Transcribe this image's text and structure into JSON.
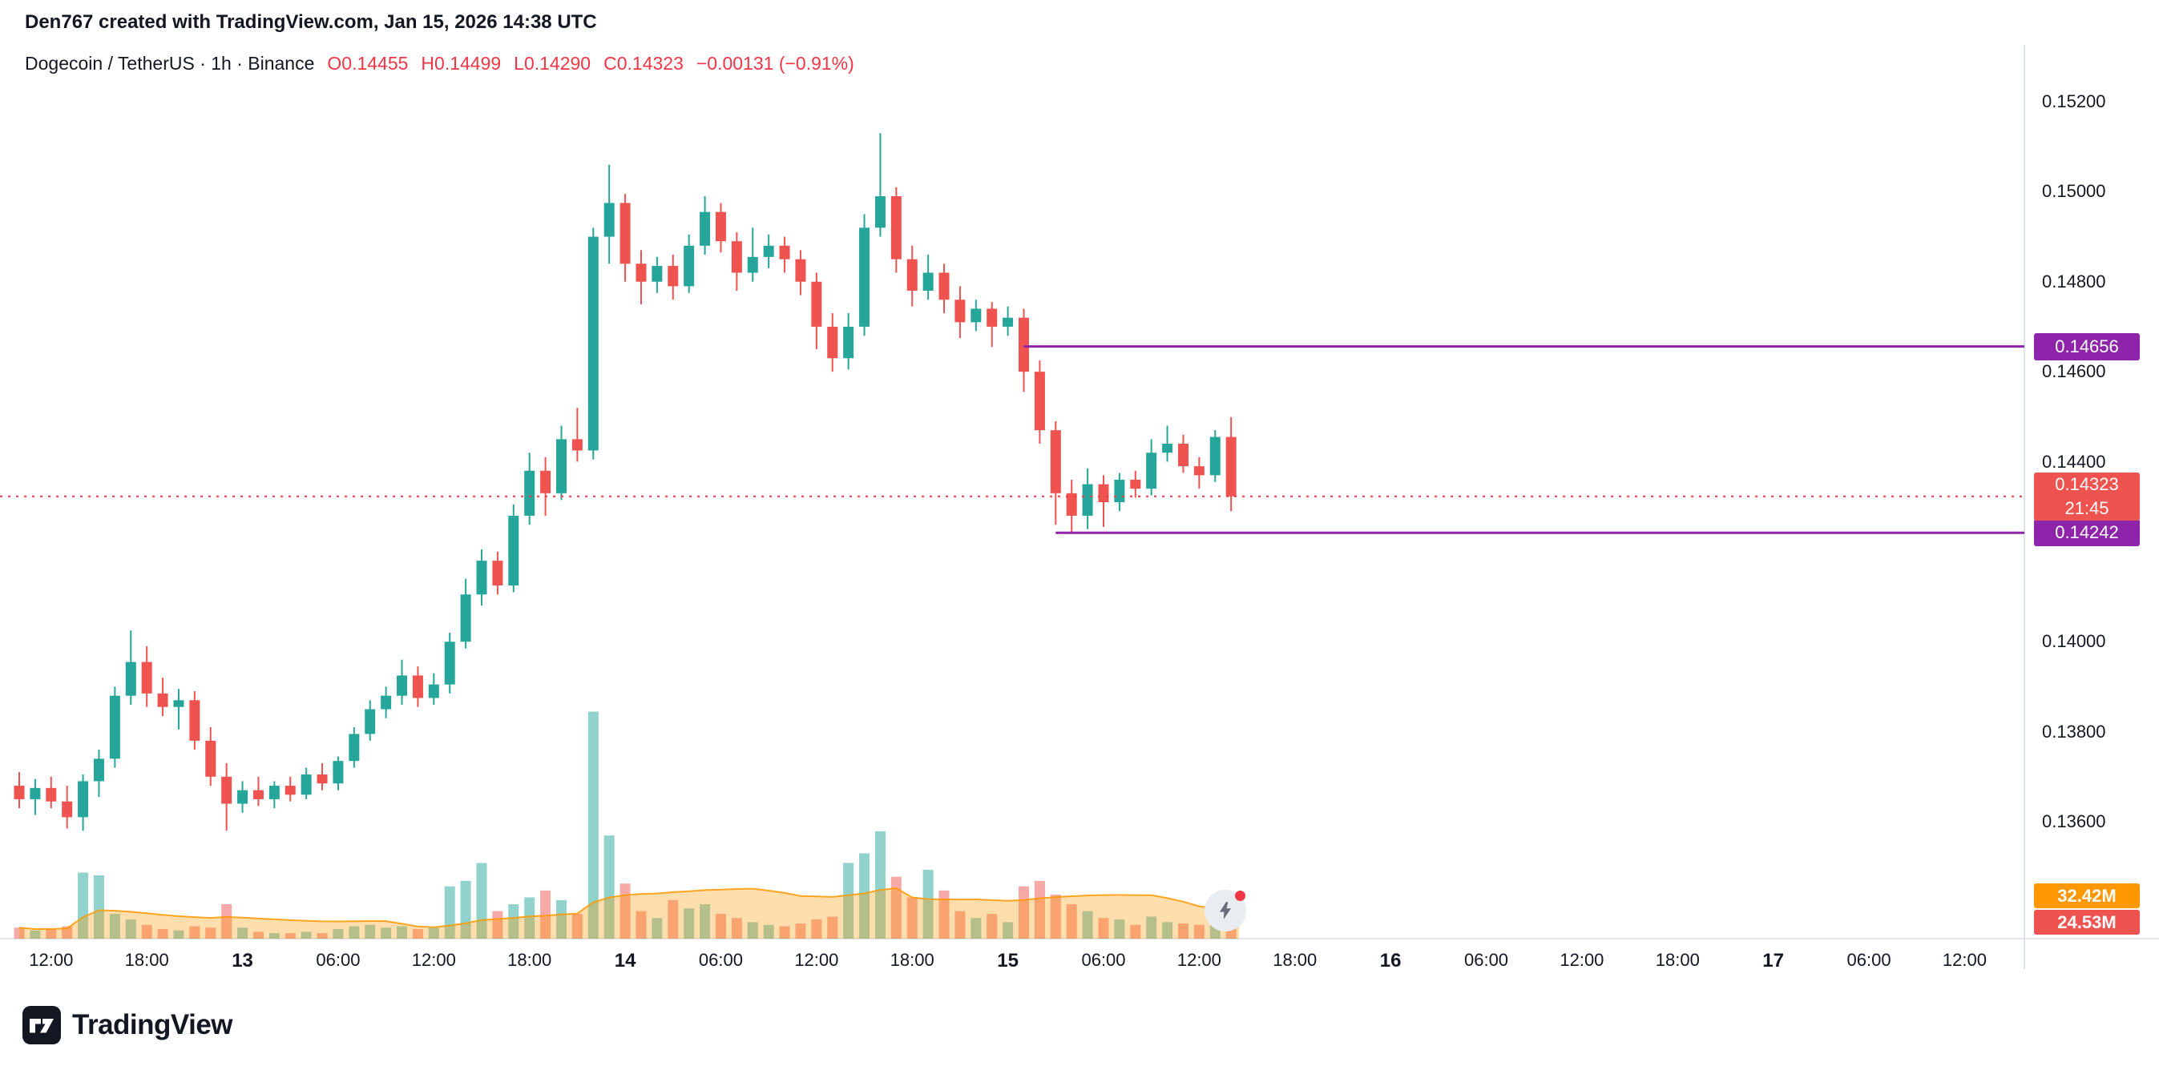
{
  "header": {
    "attribution": "Den767 created with TradingView.com, Jan 15, 2026 14:38 UTC",
    "symbol": "Dogecoin / TetherUS · 1h · Binance",
    "ohlc": {
      "open": "O0.14455",
      "high": "H0.14499",
      "low": "L0.14290",
      "close": "C0.14323",
      "change": "−0.00131 (−0.91%)"
    }
  },
  "colors": {
    "up": "#26a69a",
    "down": "#ef5350",
    "volume_up": "rgba(38,166,154,0.5)",
    "volume_down": "rgba(239,83,80,0.5)",
    "volume_ma_fill": "rgba(255,152,0,0.32)",
    "volume_ma_line": "rgba(255,152,0,0.85)",
    "alert_line": "#8e24aa",
    "last_price_line": "#f23645",
    "text_red": "#f23645",
    "axis_text": "#131722",
    "separator": "#e0e3eb",
    "badge_orange": "#ff9800",
    "badge_red": "#ef5350"
  },
  "chart_data": {
    "type": "candlestick",
    "title": "Dogecoin / TetherUS",
    "interval": "1h",
    "exchange": "Binance",
    "start_time": "Jan 12 10:00 UTC",
    "interval_minutes": 60,
    "axis_range": {
      "price_top": 0.152,
      "price_bottom": 0.136
    },
    "price_axis_labels": [
      {
        "price": 0.152,
        "text": "0.15200"
      },
      {
        "price": 0.15,
        "text": "0.15000"
      },
      {
        "price": 0.148,
        "text": "0.14800"
      },
      {
        "price": 0.146,
        "text": "0.14600"
      },
      {
        "price": 0.144,
        "text": "0.14400"
      },
      {
        "price": 0.14,
        "text": "0.14000"
      },
      {
        "price": 0.138,
        "text": "0.13800"
      },
      {
        "price": 0.136,
        "text": "0.13600"
      }
    ],
    "time_axis": [
      {
        "i": 2,
        "label": "12:00",
        "bold": false
      },
      {
        "i": 8,
        "label": "18:00",
        "bold": false
      },
      {
        "i": 14,
        "label": "13",
        "bold": true
      },
      {
        "i": 20,
        "label": "06:00",
        "bold": false
      },
      {
        "i": 26,
        "label": "12:00",
        "bold": false
      },
      {
        "i": 32,
        "label": "18:00",
        "bold": false
      },
      {
        "i": 38,
        "label": "14",
        "bold": true
      },
      {
        "i": 44,
        "label": "06:00",
        "bold": false
      },
      {
        "i": 50,
        "label": "12:00",
        "bold": false
      },
      {
        "i": 56,
        "label": "18:00",
        "bold": false
      },
      {
        "i": 62,
        "label": "15",
        "bold": true
      },
      {
        "i": 68,
        "label": "06:00",
        "bold": false
      },
      {
        "i": 74,
        "label": "12:00",
        "bold": false
      },
      {
        "i": 80,
        "label": "18:00",
        "bold": false
      },
      {
        "i": 86,
        "label": "16",
        "bold": true
      },
      {
        "i": 92,
        "label": "06:00",
        "bold": false
      },
      {
        "i": 98,
        "label": "12:00",
        "bold": false
      },
      {
        "i": 104,
        "label": "18:00",
        "bold": false
      },
      {
        "i": 110,
        "label": "17",
        "bold": true
      },
      {
        "i": 116,
        "label": "06:00",
        "bold": false
      },
      {
        "i": 122,
        "label": "12:00",
        "bold": false
      }
    ],
    "columns": [
      "open",
      "high",
      "low",
      "close",
      "volume_millions"
    ],
    "candles": [
      [
        0.1368,
        0.1371,
        0.1363,
        0.1365,
        8
      ],
      [
        0.1365,
        0.13695,
        0.13615,
        0.13675,
        6
      ],
      [
        0.13675,
        0.137,
        0.1363,
        0.13645,
        7
      ],
      [
        0.13645,
        0.1368,
        0.13585,
        0.1361,
        9
      ],
      [
        0.1361,
        0.13705,
        0.1358,
        0.1369,
        48
      ],
      [
        0.1369,
        0.1376,
        0.13655,
        0.1374,
        46
      ],
      [
        0.1374,
        0.139,
        0.1372,
        0.1388,
        18
      ],
      [
        0.1388,
        0.14025,
        0.1386,
        0.13955,
        14
      ],
      [
        0.13955,
        0.1399,
        0.13855,
        0.13885,
        10
      ],
      [
        0.13885,
        0.1392,
        0.13835,
        0.13855,
        7
      ],
      [
        0.13855,
        0.13895,
        0.13805,
        0.1387,
        6
      ],
      [
        0.1387,
        0.1389,
        0.1376,
        0.1378,
        9
      ],
      [
        0.1378,
        0.1381,
        0.1368,
        0.137,
        8
      ],
      [
        0.137,
        0.1373,
        0.1358,
        0.1364,
        25
      ],
      [
        0.1364,
        0.1369,
        0.1362,
        0.1367,
        8
      ],
      [
        0.1367,
        0.137,
        0.13635,
        0.1365,
        5
      ],
      [
        0.1365,
        0.1369,
        0.1363,
        0.1368,
        4
      ],
      [
        0.1368,
        0.137,
        0.13645,
        0.1366,
        4
      ],
      [
        0.1366,
        0.1372,
        0.1365,
        0.13705,
        5
      ],
      [
        0.13705,
        0.1373,
        0.1367,
        0.13685,
        4
      ],
      [
        0.13685,
        0.13745,
        0.1367,
        0.13735,
        7
      ],
      [
        0.13735,
        0.1381,
        0.1372,
        0.13795,
        9
      ],
      [
        0.13795,
        0.1387,
        0.1378,
        0.1385,
        10
      ],
      [
        0.1385,
        0.139,
        0.1383,
        0.1388,
        8
      ],
      [
        0.1388,
        0.1396,
        0.1386,
        0.13925,
        9
      ],
      [
        0.13925,
        0.13945,
        0.13855,
        0.13875,
        7
      ],
      [
        0.13875,
        0.1393,
        0.1386,
        0.13905,
        8
      ],
      [
        0.13905,
        0.1402,
        0.13885,
        0.14,
        38
      ],
      [
        0.14,
        0.1414,
        0.13985,
        0.14105,
        42
      ],
      [
        0.14105,
        0.14205,
        0.1408,
        0.1418,
        55
      ],
      [
        0.1418,
        0.142,
        0.14105,
        0.14125,
        20
      ],
      [
        0.14125,
        0.14305,
        0.1411,
        0.1428,
        25
      ],
      [
        0.1428,
        0.1442,
        0.1426,
        0.1438,
        30
      ],
      [
        0.1438,
        0.1441,
        0.1428,
        0.1433,
        35
      ],
      [
        0.1433,
        0.1448,
        0.14315,
        0.1445,
        28
      ],
      [
        0.1445,
        0.1452,
        0.144,
        0.14425,
        18
      ],
      [
        0.14425,
        0.1492,
        0.14405,
        0.149,
        165
      ],
      [
        0.149,
        0.1506,
        0.1484,
        0.14975,
        75
      ],
      [
        0.14975,
        0.14995,
        0.148,
        0.1484,
        40
      ],
      [
        0.1484,
        0.1487,
        0.1475,
        0.148,
        20
      ],
      [
        0.148,
        0.14855,
        0.14775,
        0.14835,
        15
      ],
      [
        0.14835,
        0.1486,
        0.1476,
        0.1479,
        28
      ],
      [
        0.1479,
        0.14905,
        0.14775,
        0.1488,
        22
      ],
      [
        0.1488,
        0.1499,
        0.1486,
        0.14955,
        25
      ],
      [
        0.14955,
        0.14975,
        0.14865,
        0.1489,
        18
      ],
      [
        0.1489,
        0.1491,
        0.1478,
        0.1482,
        15
      ],
      [
        0.1482,
        0.1492,
        0.148,
        0.14855,
        12
      ],
      [
        0.14855,
        0.14905,
        0.1483,
        0.1488,
        10
      ],
      [
        0.1488,
        0.149,
        0.1482,
        0.1485,
        9
      ],
      [
        0.1485,
        0.1487,
        0.1477,
        0.148,
        11
      ],
      [
        0.148,
        0.1482,
        0.1465,
        0.147,
        14
      ],
      [
        0.147,
        0.1473,
        0.146,
        0.1463,
        16
      ],
      [
        0.1463,
        0.1473,
        0.14605,
        0.147,
        55
      ],
      [
        0.147,
        0.1495,
        0.1468,
        0.1492,
        62
      ],
      [
        0.1492,
        0.1513,
        0.149,
        0.1499,
        78
      ],
      [
        0.1499,
        0.1501,
        0.1482,
        0.1485,
        45
      ],
      [
        0.1485,
        0.1488,
        0.14745,
        0.1478,
        30
      ],
      [
        0.1478,
        0.1486,
        0.1476,
        0.1482,
        50
      ],
      [
        0.1482,
        0.1484,
        0.1473,
        0.1476,
        35
      ],
      [
        0.1476,
        0.1479,
        0.14675,
        0.1471,
        20
      ],
      [
        0.1471,
        0.1476,
        0.1469,
        0.1474,
        15
      ],
      [
        0.1474,
        0.14755,
        0.14655,
        0.147,
        18
      ],
      [
        0.147,
        0.14745,
        0.1468,
        0.1472,
        12
      ],
      [
        0.1472,
        0.1474,
        0.14555,
        0.146,
        38
      ],
      [
        0.146,
        0.14625,
        0.1444,
        0.1447,
        42
      ],
      [
        0.1447,
        0.1449,
        0.1426,
        0.1433,
        32
      ],
      [
        0.1433,
        0.1436,
        0.14242,
        0.1428,
        25
      ],
      [
        0.1428,
        0.14385,
        0.1425,
        0.1435,
        20
      ],
      [
        0.1435,
        0.1437,
        0.14255,
        0.1431,
        15
      ],
      [
        0.1431,
        0.14375,
        0.1429,
        0.1436,
        14
      ],
      [
        0.1436,
        0.1438,
        0.1432,
        0.1434,
        10
      ],
      [
        0.1434,
        0.1445,
        0.14325,
        0.1442,
        16
      ],
      [
        0.1442,
        0.1448,
        0.144,
        0.1444,
        12
      ],
      [
        0.1444,
        0.1446,
        0.14375,
        0.1439,
        11
      ],
      [
        0.1439,
        0.1441,
        0.1434,
        0.1437,
        10
      ],
      [
        0.1437,
        0.1447,
        0.14355,
        0.14455,
        14
      ],
      [
        0.14455,
        0.14499,
        0.1429,
        0.14323,
        24.53
      ]
    ],
    "volume_ma_window": 20,
    "lines": {
      "last_close": {
        "price": 0.14323,
        "style": "dotted"
      },
      "alert_rays": [
        {
          "price": 0.14656,
          "from_index": 63
        },
        {
          "price": 0.14242,
          "from_index": 65
        }
      ]
    },
    "badges": {
      "upper": "0.14656",
      "lower": "0.14242",
      "last_price": "0.14323",
      "countdown": "21:45",
      "volume_ma": "32.42M",
      "volume": "24.53M"
    }
  },
  "footer": {
    "logo_text": "TradingView"
  }
}
